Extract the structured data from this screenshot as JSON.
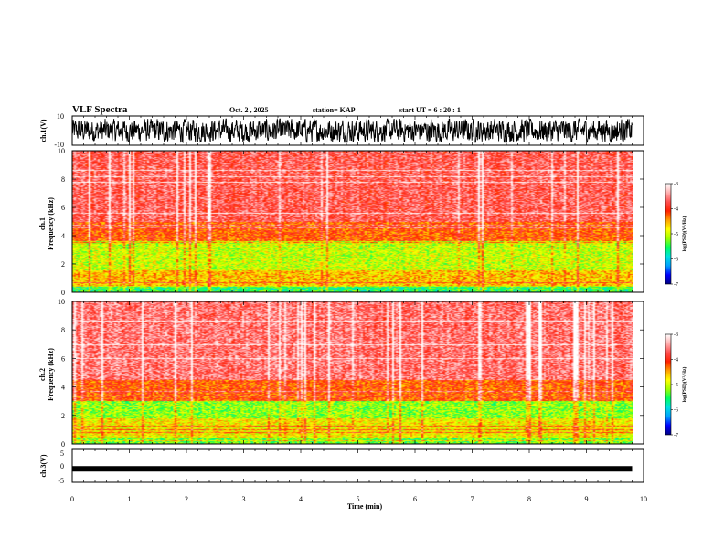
{
  "header": {
    "title": "VLF Spectra",
    "date": "Oct. 2 , 2025",
    "station": "station= KAP",
    "start": "start UT = 6 : 20 : 1"
  },
  "colors": {
    "colormap": [
      "#000080",
      "#0000ff",
      "#00a0ff",
      "#00e0e0",
      "#00ff60",
      "#a0ff00",
      "#ffff00",
      "#ffa000",
      "#ff2000",
      "#ff5050",
      "#ffb0b0",
      "#ffffff"
    ],
    "trace": "#000000"
  },
  "chart_data": [
    {
      "type": "line",
      "name": "ch1-waveform",
      "ylabel": "ch.1(V)",
      "ylim": [
        -10,
        10
      ],
      "yticks": [
        "10",
        "-10"
      ],
      "description_of_values": "broadband noise oscillating roughly between -8 and 8 V",
      "amplitude_range": [
        -8,
        8
      ]
    },
    {
      "type": "heatmap",
      "name": "ch1-spectrogram",
      "ylabel": "ch.1\nFrequency (kHz)",
      "ylabel_lines": [
        "ch.1",
        "Frequency (kHz)"
      ],
      "ylim": [
        0,
        10
      ],
      "yticks": [
        "0",
        "2",
        "4",
        "6",
        "8",
        "10"
      ],
      "colorbar": {
        "label": "log(PSD)(V²/Hz)",
        "range": [
          -7,
          -3
        ],
        "ticks": [
          "-3",
          "-4",
          "-5",
          "-6",
          "-7"
        ]
      },
      "band_profile_kHz": [
        {
          "f": [
            0,
            0.4
          ],
          "level": -5.5
        },
        {
          "f": [
            0.4,
            1.5
          ],
          "level": -4.6
        },
        {
          "f": [
            1.5,
            3.6
          ],
          "level": -5.0
        },
        {
          "f": [
            3.6,
            5.0
          ],
          "level": -4.2
        },
        {
          "f": [
            5.0,
            10.0
          ],
          "level": -3.7
        }
      ]
    },
    {
      "type": "heatmap",
      "name": "ch2-spectrogram",
      "ylabel": "ch.2\nFrequency (kHz)",
      "ylabel_lines": [
        "ch.2",
        "Frequency (kHz)"
      ],
      "ylim": [
        0,
        10
      ],
      "yticks": [
        "0",
        "2",
        "4",
        "6",
        "8",
        "10"
      ],
      "colorbar": {
        "label": "log(PSD)(V²/Hz)",
        "range": [
          -7,
          -3
        ],
        "ticks": [
          "-3",
          "-4",
          "-5",
          "-6",
          "-7"
        ]
      },
      "band_profile_kHz": [
        {
          "f": [
            0,
            0.4
          ],
          "level": -5.3
        },
        {
          "f": [
            0.4,
            1.8
          ],
          "level": -4.8
        },
        {
          "f": [
            1.8,
            3.0
          ],
          "level": -5.2
        },
        {
          "f": [
            3.0,
            4.5
          ],
          "level": -4.2
        },
        {
          "f": [
            4.5,
            10.0
          ],
          "level": -3.6
        }
      ]
    },
    {
      "type": "line",
      "name": "ch3-waveform",
      "ylabel": "ch.3(V)",
      "ylim": [
        -5,
        5
      ],
      "yticks": [
        "5",
        "0",
        "-5"
      ],
      "constant_level": -0.9
    }
  ],
  "xaxis": {
    "label": "Time (min)",
    "range": [
      0,
      10
    ],
    "ticks": [
      "0",
      "1",
      "2",
      "3",
      "4",
      "5",
      "6",
      "7",
      "8",
      "9",
      "10"
    ],
    "data_end": 9.8
  }
}
